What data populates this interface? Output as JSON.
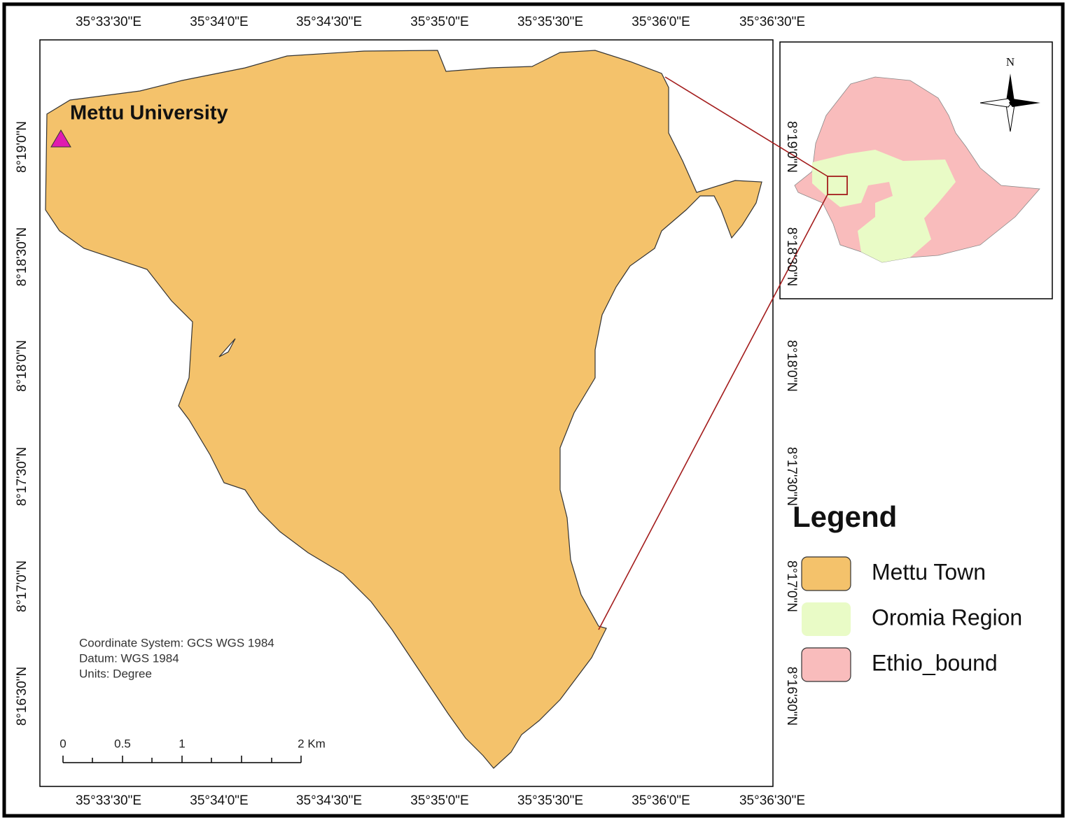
{
  "map": {
    "longitude_labels": [
      "35°33'30\"E",
      "35°34'0\"E",
      "35°34'30\"E",
      "35°35'0\"E",
      "35°35'30\"E",
      "35°36'0\"E",
      "35°36'30\"E"
    ],
    "latitude_labels": [
      "8°19'0\"N",
      "8°18'30\"N",
      "8°18'0\"N",
      "8°17'30\"N",
      "8°17'0\"N",
      "8°16'30\"N"
    ],
    "place_label": "Mettu University",
    "north_label": "N",
    "legend": {
      "title": "Legend",
      "items": [
        {
          "label": "Mettu Town",
          "color": "#f4c26b"
        },
        {
          "label": "Oromia Region",
          "color": "#e9fbc6"
        },
        {
          "label": "Ethio_bound",
          "color": "#f9bcbc"
        }
      ]
    },
    "notes": [
      "Coordinate System: GCS WGS 1984",
      "Datum: WGS 1984",
      "Units: Degree"
    ],
    "scale_bar": {
      "labels": [
        "0",
        "0.5",
        "1",
        "2 Km"
      ]
    }
  }
}
